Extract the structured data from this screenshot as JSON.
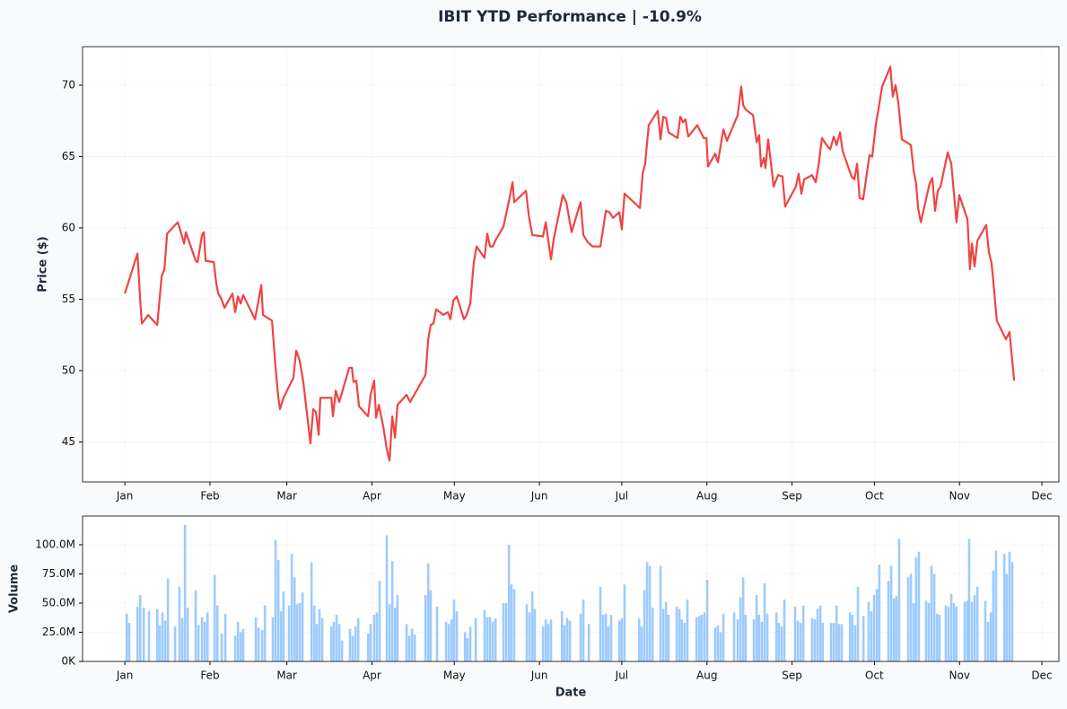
{
  "chart_data": [
    {
      "type": "line",
      "title": "IBIT YTD Performance | -10.9%",
      "ylabel": "Price ($)",
      "color": "#ef4444",
      "grid": true,
      "xlim": [
        -15.4,
        340.2
      ],
      "ylim": [
        42.2,
        72.7
      ],
      "xticks": [
        {
          "value": 0,
          "label": "Jan"
        },
        {
          "value": 31,
          "label": "Feb"
        },
        {
          "value": 59,
          "label": "Mar"
        },
        {
          "value": 90,
          "label": "Apr"
        },
        {
          "value": 120,
          "label": "May"
        },
        {
          "value": 151,
          "label": "Jun"
        },
        {
          "value": 181,
          "label": "Jul"
        },
        {
          "value": 212,
          "label": "Aug"
        },
        {
          "value": 243,
          "label": "Sep"
        },
        {
          "value": 273,
          "label": "Oct"
        },
        {
          "value": 304,
          "label": "Nov"
        },
        {
          "value": 334,
          "label": "Dec"
        }
      ],
      "yticks": [
        45,
        50,
        55,
        60,
        65,
        70
      ],
      "x": [
        0,
        4.6,
        5.6,
        6.2,
        8.5,
        11.8,
        13.4,
        14.4,
        15.4,
        19.3,
        21.6,
        22.2,
        25.8,
        26.5,
        28.1,
        28.8,
        29.4,
        32.4,
        33.3,
        34.0,
        35.0,
        36.3,
        39.2,
        40.2,
        41.2,
        42.2,
        43.1,
        47.4,
        49.7,
        50.3,
        53.6,
        54.9,
        55.9,
        56.5,
        57.8,
        60.1,
        61.4,
        62.4,
        63.7,
        65.0,
        67.6,
        68.6,
        69.6,
        70.6,
        71.2,
        75.2,
        75.8,
        76.8,
        78.1,
        81.7,
        82.7,
        83.3,
        84.3,
        85.3,
        88.6,
        89.5,
        90.8,
        91.5,
        92.5,
        94.1,
        95.4,
        96.4,
        97.4,
        98.4,
        99.3,
        102.6,
        103.9,
        109.5,
        110.5,
        111.4,
        112.4,
        113.4,
        116.0,
        117.6,
        118.6,
        119.6,
        120.9,
        123.5,
        124.5,
        125.8,
        127.1,
        128.1,
        131.0,
        132.0,
        133.0,
        134.0,
        134.9,
        137.9,
        139.9,
        141.2,
        141.8,
        146.1,
        147.1,
        148.4,
        152.3,
        153.3,
        155.2,
        156.2,
        159.5,
        160.8,
        162.7,
        166.0,
        167.0,
        168.6,
        170.3,
        173.2,
        175.2,
        176.5,
        177.8,
        180.1,
        181.0,
        182.0,
        187.6,
        188.6,
        189.5,
        190.8,
        194.1,
        195.1,
        196.1,
        197.1,
        198.0,
        201.3,
        202.3,
        203.3,
        204.2,
        205.2,
        208.5,
        210.8,
        211.8,
        212.4,
        215.0,
        216.0,
        218.0,
        219.3,
        223.2,
        224.5,
        225.2,
        226.1,
        228.8,
        230.1,
        231.0,
        231.7,
        232.7,
        233.3,
        234.3,
        236.3,
        237.9,
        239.5,
        240.5,
        244.4,
        245.4,
        246.4,
        247.4,
        250.3,
        251.6,
        252.6,
        253.9,
        255.6,
        256.9,
        258.2,
        259.2,
        260.5,
        261.4,
        263.4,
        264.7,
        265.7,
        266.7,
        267.6,
        268.9,
        271.2,
        272.2,
        273.5,
        274.8,
        275.8,
        278.8,
        279.7,
        280.7,
        281.7,
        283.0,
        286.3,
        287.3,
        288.2,
        288.9,
        289.9,
        293.1,
        294.1,
        295.1,
        296.1,
        297.1,
        299.7,
        301.0,
        302.9,
        303.9,
        306.9,
        307.8,
        308.5,
        309.5,
        310.5,
        313.7,
        314.7,
        315.7,
        317.6,
        320.9,
        322.2,
        323.9
      ],
      "values": [
        55.4,
        58.2,
        54.9,
        53.3,
        53.9,
        53.2,
        56.6,
        57.1,
        59.6,
        60.4,
        58.9,
        59.7,
        57.7,
        57.6,
        59.5,
        59.7,
        57.7,
        57.6,
        56.1,
        55.4,
        55.1,
        54.4,
        55.4,
        54.1,
        55.2,
        54.7,
        55.3,
        53.6,
        56.0,
        53.9,
        53.5,
        50.2,
        48.1,
        47.3,
        48.1,
        49.0,
        49.5,
        51.4,
        50.7,
        49.2,
        44.9,
        47.3,
        47.1,
        45.5,
        48.1,
        48.1,
        46.8,
        48.6,
        47.8,
        50.2,
        50.2,
        49.2,
        49.3,
        47.5,
        46.8,
        48.3,
        49.3,
        46.7,
        47.6,
        46.1,
        44.5,
        43.7,
        46.8,
        45.3,
        47.6,
        48.3,
        47.8,
        49.7,
        52.2,
        53.2,
        53.3,
        54.3,
        53.9,
        54.1,
        53.6,
        54.9,
        55.2,
        53.6,
        53.9,
        54.7,
        57.6,
        58.7,
        57.9,
        59.6,
        58.7,
        58.7,
        59.1,
        60.1,
        61.9,
        63.2,
        61.8,
        62.6,
        60.9,
        59.5,
        59.4,
        60.4,
        57.8,
        59.2,
        62.3,
        61.8,
        59.7,
        61.8,
        59.5,
        59.0,
        58.7,
        58.7,
        61.2,
        61.1,
        60.7,
        61.1,
        59.9,
        62.4,
        61.4,
        63.8,
        64.5,
        67.2,
        68.2,
        66.2,
        67.8,
        67.7,
        66.7,
        66.3,
        67.8,
        67.4,
        67.6,
        66.4,
        67.2,
        66.3,
        66.3,
        64.3,
        65.2,
        64.6,
        66.9,
        66.1,
        67.9,
        69.9,
        68.6,
        68.3,
        67.9,
        66.0,
        66.5,
        64.3,
        64.9,
        64.2,
        66.2,
        62.9,
        63.7,
        63.6,
        61.5,
        62.9,
        63.8,
        62.4,
        63.4,
        63.7,
        63.2,
        64.3,
        66.3,
        65.8,
        65.5,
        66.4,
        65.8,
        66.7,
        65.4,
        64.3,
        63.6,
        63.4,
        64.5,
        62.1,
        62.0,
        65.1,
        65.0,
        67.2,
        68.7,
        69.9,
        71.3,
        69.2,
        70.0,
        68.8,
        66.2,
        65.8,
        64.0,
        63.1,
        61.4,
        60.4,
        63.1,
        63.5,
        61.2,
        62.6,
        62.9,
        65.3,
        64.5,
        60.4,
        62.3,
        60.6,
        57.1,
        58.9,
        57.3,
        59.1,
        60.2,
        58.3,
        57.5,
        53.5,
        52.2,
        52.7,
        49.3
      ]
    },
    {
      "type": "bar",
      "xlabel": "Date",
      "ylabel": "Volume",
      "color": "#93c5fd",
      "grid": true,
      "xlim": [
        -15.4,
        340.2
      ],
      "ylim": [
        0,
        124600000
      ],
      "xticks": [
        {
          "value": 0,
          "label": "Jan"
        },
        {
          "value": 31,
          "label": "Feb"
        },
        {
          "value": 59,
          "label": "Mar"
        },
        {
          "value": 90,
          "label": "Apr"
        },
        {
          "value": 120,
          "label": "May"
        },
        {
          "value": 151,
          "label": "Jun"
        },
        {
          "value": 181,
          "label": "Jul"
        },
        {
          "value": 212,
          "label": "Aug"
        },
        {
          "value": 243,
          "label": "Sep"
        },
        {
          "value": 273,
          "label": "Oct"
        },
        {
          "value": 304,
          "label": "Nov"
        },
        {
          "value": 334,
          "label": "Dec"
        }
      ],
      "yticks": [
        {
          "value": 0,
          "label": "0K"
        },
        {
          "value": 25000000,
          "label": "25.0M"
        },
        {
          "value": 50000000,
          "label": "50.0M"
        },
        {
          "value": 75000000,
          "label": "75.0M"
        },
        {
          "value": 100000000,
          "label": "100.0M"
        }
      ],
      "x": [
        0.7,
        1.6,
        4.6,
        5.6,
        6.9,
        8.8,
        11.8,
        12.7,
        13.7,
        14.7,
        15.7,
        18.3,
        19.9,
        20.9,
        21.9,
        22.9,
        25.8,
        26.8,
        28.1,
        29.1,
        30.1,
        32.7,
        33.7,
        35.3,
        36.6,
        40.2,
        41.2,
        42.2,
        43.1,
        47.7,
        48.7,
        50.0,
        51.0,
        53.9,
        54.9,
        55.9,
        56.9,
        57.8,
        59.8,
        60.8,
        61.8,
        62.7,
        63.7,
        64.7,
        68.0,
        69.0,
        69.9,
        70.9,
        71.9,
        75.2,
        76.1,
        77.1,
        78.1,
        79.1,
        82.0,
        83.0,
        84.0,
        85.0,
        88.6,
        89.5,
        90.8,
        91.8,
        92.8,
        95.4,
        96.4,
        97.4,
        98.4,
        99.3,
        102.6,
        103.6,
        104.6,
        105.6,
        109.5,
        110.5,
        111.4,
        113.7,
        117.0,
        118.0,
        119.0,
        119.9,
        120.9,
        123.9,
        124.8,
        125.8,
        127.8,
        131.0,
        132.0,
        133.0,
        134.0,
        135.0,
        137.9,
        138.9,
        139.9,
        140.8,
        141.8,
        146.4,
        147.4,
        148.4,
        149.3,
        152.3,
        153.3,
        154.2,
        155.2,
        159.2,
        160.1,
        161.1,
        162.1,
        166.0,
        167.0,
        169.0,
        173.2,
        174.2,
        175.2,
        176.1,
        177.1,
        180.1,
        181.0,
        182.0,
        187.3,
        188.2,
        189.2,
        190.2,
        191.2,
        192.2,
        195.1,
        196.1,
        197.1,
        198.0,
        201.0,
        202.0,
        202.9,
        203.9,
        204.9,
        208.2,
        209.2,
        210.1,
        211.1,
        212.1,
        215.0,
        216.0,
        217.0,
        218.0,
        221.9,
        223.2,
        224.2,
        225.2,
        226.1,
        229.1,
        230.1,
        231.0,
        232.0,
        233.0,
        234.0,
        237.3,
        238.2,
        239.2,
        240.2,
        244.1,
        245.1,
        246.1,
        247.1,
        250.3,
        251.3,
        252.3,
        253.3,
        254.2,
        257.2,
        258.2,
        259.2,
        260.1,
        261.1,
        264.1,
        265.0,
        266.0,
        267.0,
        269.0,
        270.9,
        271.9,
        272.9,
        273.9,
        274.8,
        278.1,
        279.1,
        280.1,
        281.0,
        282.0,
        285.3,
        286.3,
        287.3,
        288.2,
        289.2,
        291.8,
        292.8,
        293.8,
        294.8,
        295.8,
        296.7,
        299.0,
        300.0,
        301.0,
        302.0,
        302.9,
        305.9,
        306.9,
        307.5,
        308.5,
        309.5,
        310.5,
        313.4,
        314.4,
        315.4,
        316.3,
        317.3,
        320.3,
        321.2,
        322.2,
        323.2
      ],
      "values": [
        41000000,
        33000000,
        47000000,
        57000000,
        46000000,
        43000000,
        45000000,
        31000000,
        42000000,
        35000000,
        71000000,
        30000000,
        64000000,
        37000000,
        117000000,
        46000000,
        61000000,
        31000000,
        38000000,
        34000000,
        42000000,
        74000000,
        48000000,
        24000000,
        41000000,
        22000000,
        34000000,
        25000000,
        28000000,
        38000000,
        29000000,
        27000000,
        48000000,
        38000000,
        104000000,
        87000000,
        43000000,
        60000000,
        48000000,
        92000000,
        72000000,
        49000000,
        50000000,
        59000000,
        85000000,
        48000000,
        32000000,
        45000000,
        37000000,
        30000000,
        34000000,
        40000000,
        32000000,
        18000000,
        28000000,
        22000000,
        30000000,
        37000000,
        24000000,
        32000000,
        40000000,
        42000000,
        69000000,
        108000000,
        49000000,
        86000000,
        46000000,
        57000000,
        32000000,
        22000000,
        28000000,
        23000000,
        57000000,
        84000000,
        61000000,
        47000000,
        34000000,
        32000000,
        36000000,
        53000000,
        43000000,
        25000000,
        20000000,
        30000000,
        37000000,
        44000000,
        38000000,
        38000000,
        34000000,
        37000000,
        50000000,
        50000000,
        100000000,
        66000000,
        62000000,
        49000000,
        42000000,
        60000000,
        45000000,
        30000000,
        36000000,
        32000000,
        36000000,
        43000000,
        31000000,
        37000000,
        35000000,
        41000000,
        53000000,
        32000000,
        64000000,
        40000000,
        41000000,
        30000000,
        40000000,
        35000000,
        37000000,
        66000000,
        37000000,
        30000000,
        61000000,
        85000000,
        82000000,
        46000000,
        82000000,
        45000000,
        51000000,
        40000000,
        47000000,
        45000000,
        36000000,
        33000000,
        53000000,
        38000000,
        39000000,
        40000000,
        42000000,
        70000000,
        29000000,
        31000000,
        25000000,
        41000000,
        42000000,
        36000000,
        55000000,
        72000000,
        40000000,
        36000000,
        57000000,
        40000000,
        34000000,
        67000000,
        41000000,
        42000000,
        33000000,
        30000000,
        53000000,
        47000000,
        35000000,
        33000000,
        48000000,
        37000000,
        36000000,
        45000000,
        48000000,
        33000000,
        33000000,
        33000000,
        48000000,
        32000000,
        32000000,
        42000000,
        40000000,
        31000000,
        64000000,
        39000000,
        51000000,
        43000000,
        57000000,
        62000000,
        83000000,
        69000000,
        82000000,
        54000000,
        56000000,
        105000000,
        72000000,
        75000000,
        50000000,
        89000000,
        94000000,
        52000000,
        50000000,
        82000000,
        75000000,
        41000000,
        40000000,
        48000000,
        47000000,
        58000000,
        50000000,
        47000000,
        51000000,
        52000000,
        105000000,
        51000000,
        57000000,
        64000000,
        52000000,
        34000000,
        42000000,
        78000000,
        95000000,
        92000000,
        75000000,
        94000000,
        85000000
      ]
    }
  ]
}
